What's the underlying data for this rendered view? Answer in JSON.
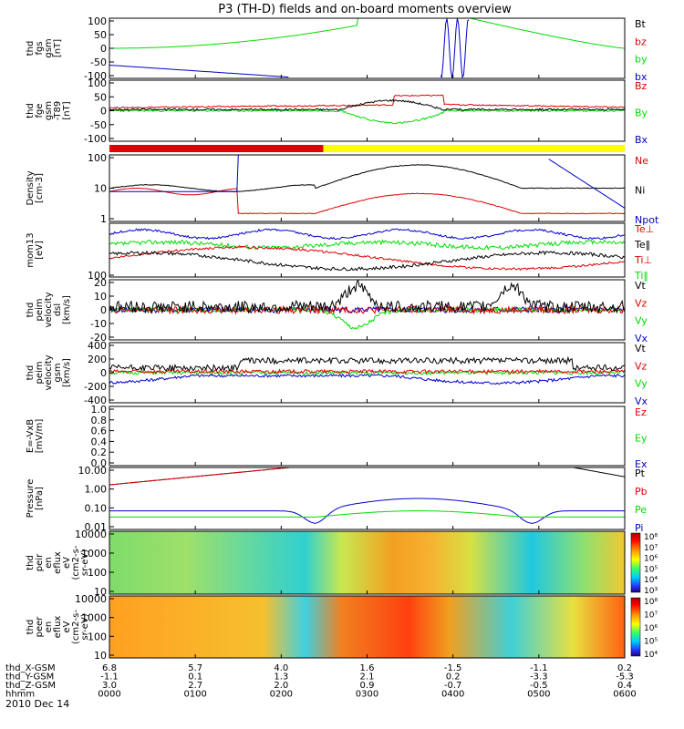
{
  "title": "P3 (TH-D) fields and on-board moments overview",
  "date": "2010 Dec 14",
  "colors": {
    "black": "#000000",
    "red": "#e00000",
    "green": "#00dd00",
    "blue": "#0000cc",
    "yellow": "#ffff00"
  },
  "bars": [
    {
      "from": 0,
      "to": 0.415,
      "color": "#e00000"
    },
    {
      "from": 0.415,
      "to": 1.0,
      "color": "#ffff00"
    }
  ],
  "chart_data": {
    "type": "line",
    "x": [
      "0000",
      "0100",
      "0200",
      "0300",
      "0400",
      "0500",
      "0600"
    ],
    "ephemeris": [
      {
        "label": "thd_X-GSM",
        "values": [
          "6.8",
          "5.7",
          "4.0",
          "1.6",
          "-1.5",
          "-1.1",
          "0.2"
        ]
      },
      {
        "label": "thd_Y-GSM",
        "values": [
          "-1.1",
          "0.1",
          "1.3",
          "2.1",
          "0.2",
          "-3.3",
          "-5.3"
        ]
      },
      {
        "label": "thd_Z-GSM",
        "values": [
          "3.0",
          "2.7",
          "2.0",
          "0.9",
          "-0.7",
          "-0.5",
          "0.4"
        ]
      },
      {
        "label": "hhmm",
        "values": [
          "0000",
          "0100",
          "0200",
          "0300",
          "0400",
          "0500",
          "0600"
        ]
      }
    ],
    "panels": [
      {
        "ylabel": [
          "thd",
          "fgs",
          "gsm",
          "[nT]"
        ],
        "yticks": [
          "100",
          "50",
          "0",
          "-50",
          "-100"
        ],
        "ylim": [
          -100,
          100
        ],
        "legend": [
          {
            "text": "Bt",
            "color": "#000000"
          },
          {
            "text": "bz",
            "color": "#e00000"
          },
          {
            "text": "by",
            "color": "#00dd00"
          },
          {
            "text": "bx",
            "color": "#0000cc"
          }
        ]
      },
      {
        "ylabel": [
          "thd",
          "fge",
          "gsm",
          "-T89",
          "[nT]"
        ],
        "yticks": [
          "100",
          "50",
          "0",
          "-50",
          "-100"
        ],
        "ylim": [
          -130,
          130
        ],
        "legend": [
          {
            "text": "Bz",
            "color": "#e00000"
          },
          {
            "text": "By",
            "color": "#00dd00"
          },
          {
            "text": "Bx",
            "color": "#0000cc"
          }
        ]
      },
      {
        "ylabel": [
          "Density",
          "[cm-3]"
        ],
        "yticks": [
          "100",
          "10",
          "1"
        ],
        "ylim": [
          0.3,
          100
        ],
        "log": true,
        "legend": [
          {
            "text": "Ne",
            "color": "#e00000"
          },
          {
            "text": "Ni",
            "color": "#000000"
          },
          {
            "text": "Npot",
            "color": "#0000cc"
          }
        ]
      },
      {
        "ylabel": [
          "mom13",
          "[eV]"
        ],
        "yticks": [
          "100"
        ],
        "ylim": [
          100,
          30000
        ],
        "log": true,
        "legend": [
          {
            "text": "Te⊥",
            "color": "#e00000"
          },
          {
            "text": "Te‖",
            "color": "#000000"
          },
          {
            "text": "Ti⊥",
            "color": "#e00000"
          },
          {
            "text": "Ti‖",
            "color": "#00dd00"
          }
        ]
      },
      {
        "ylabel": [
          "thd",
          "peim",
          "velocity",
          "dsl",
          "[km/s]"
        ],
        "yticks": [
          "20",
          "10",
          "0",
          "-10",
          "-20"
        ],
        "ylim": [
          -22,
          22
        ],
        "legend": [
          {
            "text": "Vt",
            "color": "#000000"
          },
          {
            "text": "Vz",
            "color": "#e00000"
          },
          {
            "text": "Vy",
            "color": "#00dd00"
          },
          {
            "text": "Vx",
            "color": "#0000cc"
          }
        ]
      },
      {
        "ylabel": [
          "thd",
          "peim",
          "velocity",
          "gsm",
          "[km/s]"
        ],
        "yticks": [
          "400",
          "200",
          "0",
          "-200",
          "-400"
        ],
        "ylim": [
          -420,
          420
        ],
        "legend": [
          {
            "text": "Vt",
            "color": "#000000"
          },
          {
            "text": "Vz",
            "color": "#e00000"
          },
          {
            "text": "Vy",
            "color": "#00dd00"
          },
          {
            "text": "Vx",
            "color": "#0000cc"
          }
        ]
      },
      {
        "ylabel": [
          "E=-VxB",
          "[mV/m]"
        ],
        "yticks": [
          "1.0",
          "0.8",
          "0.6",
          "0.4",
          "0.2",
          "0.0"
        ],
        "ylim": [
          0,
          1
        ],
        "legend": [
          {
            "text": "Ez",
            "color": "#e00000"
          },
          {
            "text": "Ey",
            "color": "#00dd00"
          },
          {
            "text": "Ex",
            "color": "#0000cc"
          }
        ]
      },
      {
        "ylabel": [
          "Pressure",
          "[nPa]"
        ],
        "yticks": [
          "10.00",
          "1.00",
          "0.10",
          "0.01"
        ],
        "ylim": [
          0.005,
          30
        ],
        "log": true,
        "legend": [
          {
            "text": "Pt",
            "color": "#000000"
          },
          {
            "text": "Pb",
            "color": "#e00000"
          },
          {
            "text": "Pe",
            "color": "#00dd00"
          },
          {
            "text": "Pi",
            "color": "#0000cc"
          }
        ]
      },
      {
        "ylabel": [
          "thd",
          "peir",
          "en",
          "eflux",
          "eV",
          "(cm2-s-",
          "sr-eV)"
        ],
        "yticks": [
          "10000",
          "1000",
          "100",
          "10"
        ],
        "type": "heatmap",
        "colorbar": [
          "10⁸",
          "10⁷",
          "10⁶",
          "10⁵",
          "10⁴",
          "10³"
        ]
      },
      {
        "ylabel": [
          "thd",
          "peer",
          "en",
          "eflux",
          "eV",
          "(cm2-s-",
          "sr-eV)"
        ],
        "yticks": [
          "10000",
          "1000",
          "100",
          "10"
        ],
        "type": "heatmap",
        "colorbar": [
          "10⁸",
          "10⁷",
          "10⁶",
          "10⁵",
          "10⁴"
        ]
      }
    ]
  }
}
